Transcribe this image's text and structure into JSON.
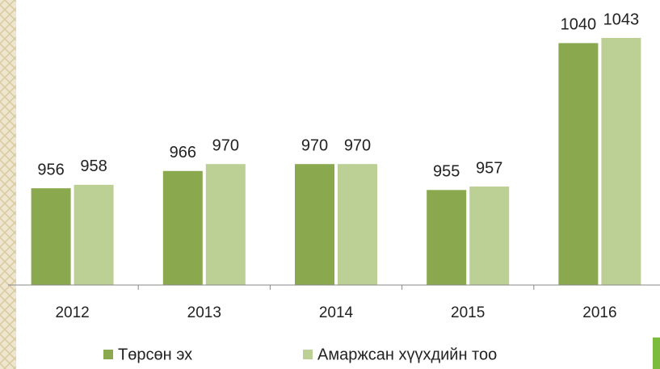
{
  "chart_data": {
    "type": "bar",
    "categories": [
      "2012",
      "2013",
      "2014",
      "2015",
      "2016"
    ],
    "series": [
      {
        "name": "Төрсөн эх",
        "color": "#8aa84e",
        "values": [
          956,
          966,
          970,
          955,
          1040
        ]
      },
      {
        "name": "Амаржсан хүүхдийн тоо",
        "color": "#bccf95",
        "values": [
          958,
          970,
          970,
          957,
          1043
        ]
      }
    ],
    "ylim": [
      900,
      1050
    ],
    "legend": "bottom"
  }
}
